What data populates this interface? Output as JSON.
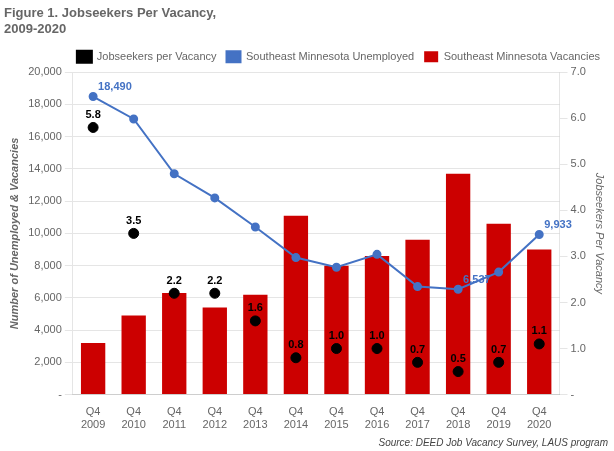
{
  "chart_data": {
    "type": "bar",
    "title": [
      "Figure 1. Jobseekers Per Vacancy,",
      "2009-2020"
    ],
    "categories": [
      "Q4\n2009",
      "Q4\n2010",
      "Q4\n2011",
      "Q4\n2012",
      "Q4\n2013",
      "Q4\n2014",
      "Q4\n2015",
      "Q4\n2016",
      "Q4\n2017",
      "Q4\n2018",
      "Q4\n2019",
      "Q4\n2020"
    ],
    "y_label": "Number of Unemployed & Vacancies",
    "y2_label": "Jobseekers Per Vacancy",
    "ylim": [
      0,
      20000
    ],
    "yticks": [
      {
        "value": 0,
        "label": "-"
      },
      {
        "value": 2000,
        "label": "2,000"
      },
      {
        "value": 4000,
        "label": "4,000"
      },
      {
        "value": 6000,
        "label": "6,000"
      },
      {
        "value": 8000,
        "label": "8,000"
      },
      {
        "value": 10000,
        "label": "10,000"
      },
      {
        "value": 12000,
        "label": "12,000"
      },
      {
        "value": 14000,
        "label": "14,000"
      },
      {
        "value": 16000,
        "label": "16,000"
      },
      {
        "value": 18000,
        "label": "18,000"
      },
      {
        "value": 20000,
        "label": "20,000"
      }
    ],
    "y2lim": [
      0,
      7.0
    ],
    "y2ticks": [
      {
        "value": 0,
        "label": "-"
      },
      {
        "value": 1.0,
        "label": "1.0"
      },
      {
        "value": 2.0,
        "label": "2.0"
      },
      {
        "value": 3.0,
        "label": "3.0"
      },
      {
        "value": 4.0,
        "label": "4.0"
      },
      {
        "value": 5.0,
        "label": "5.0"
      },
      {
        "value": 6.0,
        "label": "6.0"
      },
      {
        "value": 7.0,
        "label": "7.0"
      }
    ],
    "grid": true,
    "legend": "upper right",
    "annotations": [
      "Source: DEED Job Vacancy Survey, LAUS program"
    ],
    "series": [
      {
        "name": "Southeast Minnesota Vacancies",
        "type": "bar",
        "color": "#cc0000",
        "values": [
          3200,
          4900,
          6300,
          5400,
          6200,
          11100,
          8000,
          8600,
          9600,
          13700,
          10600,
          9000
        ]
      },
      {
        "name": "Southeast Minnesota Unemployed",
        "type": "line",
        "color": "#4472c4",
        "marker": "o",
        "values": [
          18490,
          17100,
          13700,
          12200,
          10400,
          8500,
          7900,
          8700,
          6700,
          6537,
          7600,
          9933
        ],
        "data_labels": true,
        "value_labels": [
          "18,490",
          null,
          null,
          null,
          null,
          null,
          null,
          null,
          null,
          "6,537",
          null,
          "9,933"
        ]
      },
      {
        "name": "Jobseekers per Vacancy",
        "type": "scatter",
        "color": "#000000",
        "marker": "o",
        "axis": "y2",
        "values": [
          5.8,
          3.5,
          2.2,
          2.2,
          1.6,
          0.8,
          1.0,
          1.0,
          0.7,
          0.5,
          0.7,
          1.1
        ],
        "data_labels": true,
        "value_labels": [
          "5.8",
          "3.5",
          "2.2",
          "2.2",
          "1.6",
          "0.8",
          "1.0",
          "1.0",
          "0.7",
          "0.5",
          "0.7",
          "1.1"
        ]
      }
    ]
  }
}
